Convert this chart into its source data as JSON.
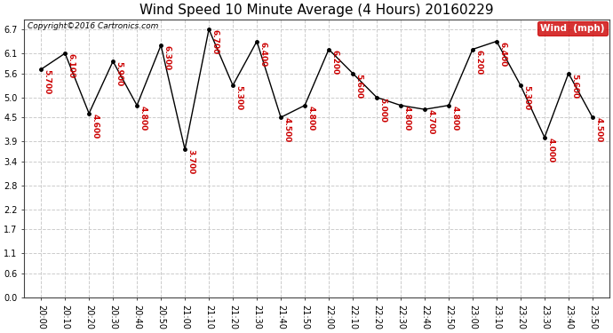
{
  "title": "Wind Speed 10 Minute Average (4 Hours) 20160229",
  "copyright": "Copyright©2016 Cartronics.com",
  "legend_label": "Wind  (mph)",
  "x_labels": [
    "20:00",
    "20:10",
    "20:20",
    "20:30",
    "20:40",
    "20:50",
    "21:00",
    "21:10",
    "21:20",
    "21:30",
    "21:40",
    "21:50",
    "22:00",
    "22:10",
    "22:20",
    "22:30",
    "22:40",
    "22:50",
    "23:00",
    "23:10",
    "23:20",
    "23:30",
    "23:40",
    "23:50"
  ],
  "y_values": [
    5.7,
    6.1,
    4.6,
    5.9,
    4.8,
    6.3,
    3.7,
    6.7,
    5.3,
    6.4,
    4.5,
    4.8,
    6.2,
    5.6,
    5.0,
    4.8,
    4.7,
    4.8,
    6.2,
    6.4,
    5.3,
    4.0,
    5.6,
    4.5
  ],
  "y_ticks": [
    0.0,
    0.6,
    1.1,
    1.7,
    2.2,
    2.8,
    3.4,
    3.9,
    4.5,
    5.0,
    5.6,
    6.1,
    6.7
  ],
  "ylim": [
    0.0,
    6.95
  ],
  "line_color": "#000000",
  "annotation_color": "#cc0000",
  "marker_color": "#000000",
  "bg_color": "#ffffff",
  "grid_color": "#cccccc",
  "title_fontsize": 11,
  "label_fontsize": 7,
  "annotation_fontsize": 6.5,
  "copyright_fontsize": 6.5,
  "legend_fontsize": 7.5
}
